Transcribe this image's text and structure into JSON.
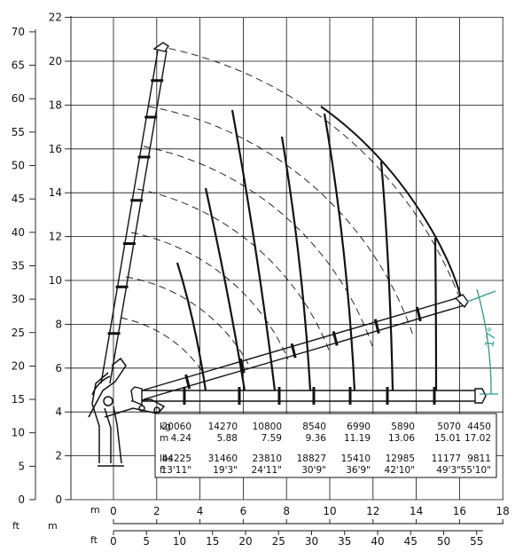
{
  "axes": {
    "ft_left_ticks": [
      "0",
      "5",
      "10",
      "15",
      "20",
      "25",
      "30",
      "35",
      "40",
      "45",
      "50",
      "55",
      "60",
      "65",
      "70"
    ],
    "m_left_ticks": [
      "0",
      "2",
      "4",
      "6",
      "8",
      "10",
      "12",
      "14",
      "16",
      "18",
      "20",
      "22"
    ],
    "m_bottom_ticks": [
      "0",
      "2",
      "4",
      "6",
      "8",
      "10",
      "12",
      "14",
      "16",
      "18"
    ],
    "ft_bottom_ticks": [
      "0",
      "5",
      "10",
      "15",
      "20",
      "25",
      "30",
      "35",
      "40",
      "45",
      "50",
      "55"
    ],
    "unit_ft_left": "ft",
    "unit_m_left": "m",
    "unit_m_bottom": "m",
    "unit_ft_bottom": "ft"
  },
  "angle_label": "17°",
  "load_table": {
    "row_labels": {
      "kg": "kg",
      "m": "m",
      "lbs": "lbs",
      "ft": "ft"
    },
    "kg": [
      "20060",
      "14270",
      "10800",
      "8540",
      "6990",
      "5890",
      "5070",
      "4450"
    ],
    "m": [
      "4.24",
      "5.88",
      "7.59",
      "9.36",
      "11.19",
      "13.06",
      "15.01",
      "17.02"
    ],
    "lbs": [
      "44225",
      "31460",
      "23810",
      "18827",
      "15410",
      "12985",
      "11177",
      "9811"
    ],
    "ft": [
      "13'11\"",
      "19'3\"",
      "24'11\"",
      "30'9\"",
      "36'9\"",
      "42'10\"",
      "49'3\"",
      "55'10\""
    ]
  },
  "colors": {
    "line": "#111111",
    "grid": "#111111",
    "angle_accent": "#2a9a8a"
  }
}
